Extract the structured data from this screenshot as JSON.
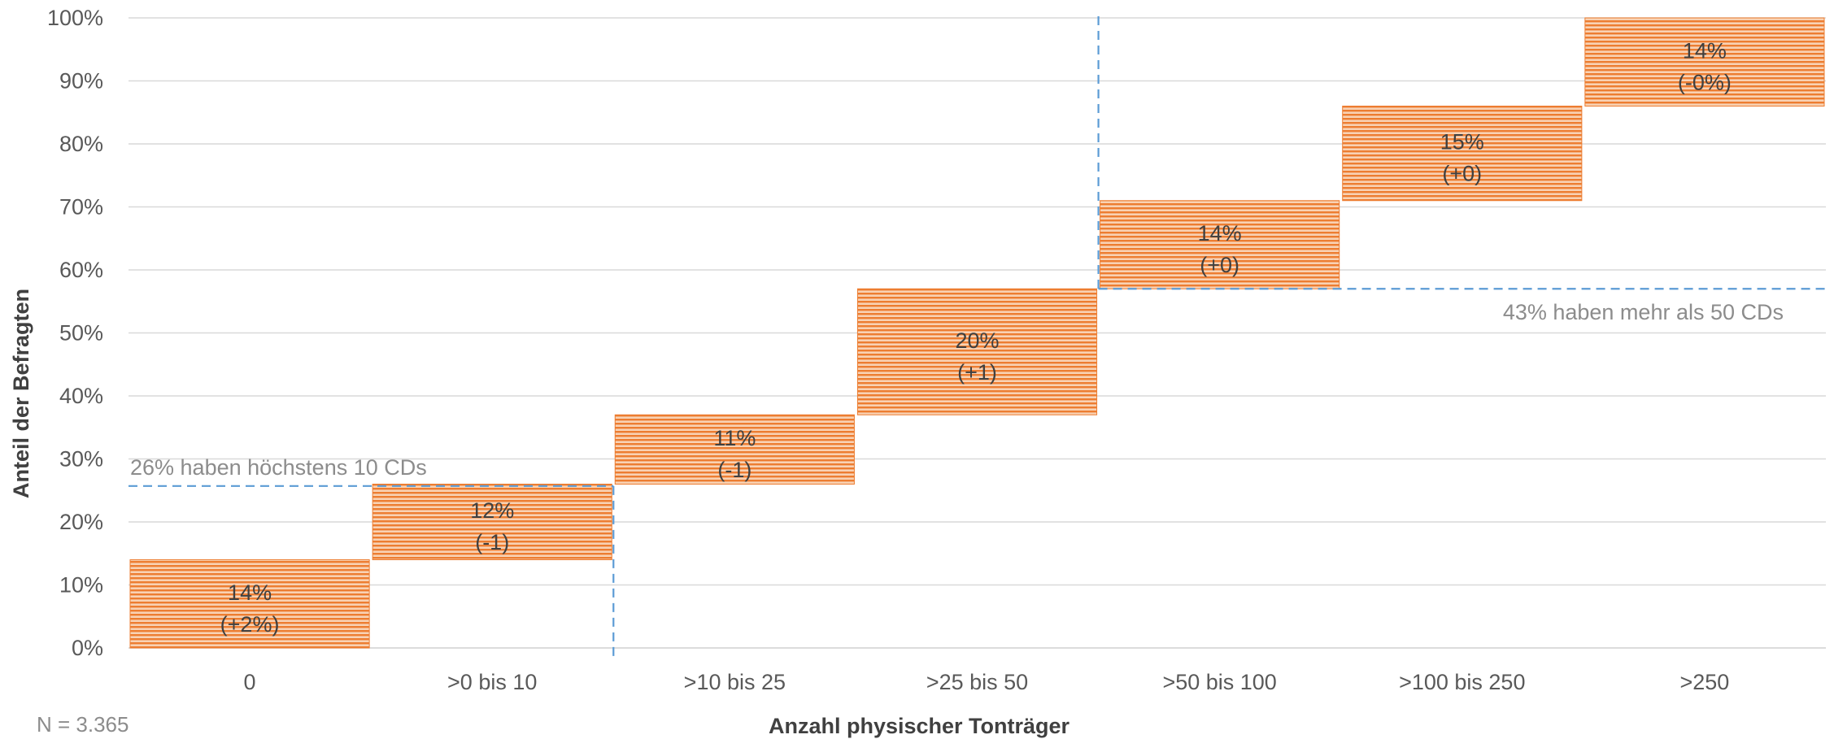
{
  "chart_data": {
    "type": "bar",
    "subtype": "waterfall",
    "categories": [
      "0",
      ">0 bis 10",
      ">10 bis 25",
      ">25 bis 50",
      ">50 bis 100",
      ">100 bis 250",
      ">250"
    ],
    "bars": [
      {
        "start": 0,
        "value": 14,
        "label": "14%",
        "change": "(+2%)"
      },
      {
        "start": 14,
        "value": 12,
        "label": "12%",
        "change": "(-1)"
      },
      {
        "start": 26,
        "value": 11,
        "label": "11%",
        "change": "(-1)"
      },
      {
        "start": 37,
        "value": 20,
        "label": "20%",
        "change": "(+1)"
      },
      {
        "start": 57,
        "value": 14,
        "label": "14%",
        "change": "(+0)"
      },
      {
        "start": 71,
        "value": 15,
        "label": "15%",
        "change": "(+0)"
      },
      {
        "start": 86,
        "value": 14,
        "label": "14%",
        "change": "(-0%)"
      }
    ],
    "ylim": [
      0,
      100
    ],
    "yticks": [
      0,
      10,
      20,
      30,
      40,
      50,
      60,
      70,
      80,
      90,
      100
    ],
    "ytick_labels": [
      "0%",
      "10%",
      "20%",
      "30%",
      "40%",
      "50%",
      "60%",
      "70%",
      "80%",
      "90%",
      "100%"
    ],
    "xlabel": "Anzahl physischer Tonträger",
    "ylabel": "Anteil der Befragten",
    "grid": true,
    "bar_color": "#ED7D31",
    "reference_line_color": "#5B9BD5",
    "annotations": [
      {
        "text": "26% haben höchstens 10 CDs",
        "y": 25.7,
        "split_after_category": 1,
        "side": "left"
      },
      {
        "text": "43% haben mehr als 50 CDs",
        "y": 57,
        "split_after_category": 3,
        "side": "right"
      }
    ],
    "note": "N = 3.365"
  }
}
